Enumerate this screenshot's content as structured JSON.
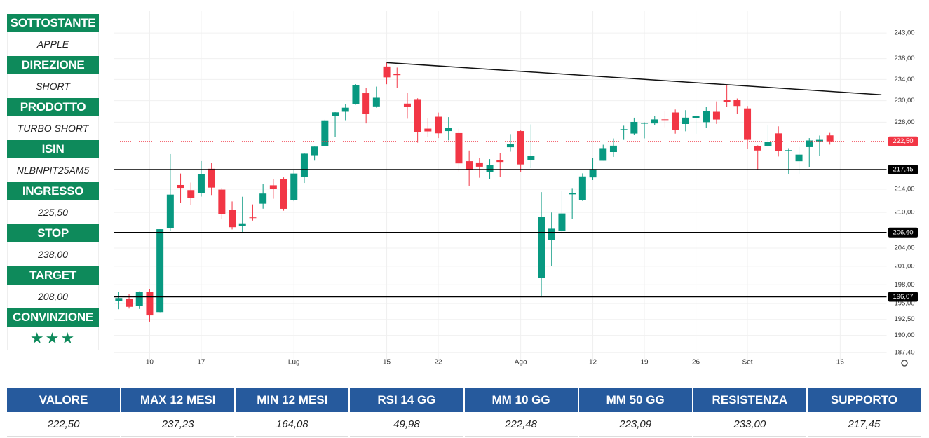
{
  "sidebar": [
    {
      "label": "SOTTOSTANTE",
      "value": "APPLE"
    },
    {
      "label": "DIREZIONE",
      "value": "SHORT"
    },
    {
      "label": "PRODOTTO",
      "value": "TURBO SHORT"
    },
    {
      "label": "ISIN",
      "value": "NLBNPIT25AM5"
    },
    {
      "label": "INGRESSO",
      "value": "225,50"
    },
    {
      "label": "STOP",
      "value": "238,00"
    },
    {
      "label": "TARGET",
      "value": "208,00"
    },
    {
      "label": "CONVINZIONE",
      "value": "★★★"
    }
  ],
  "chart_data": {
    "type": "candlestick",
    "x": [
      null,
      null,
      null,
      "10",
      null,
      null,
      null,
      null,
      "17",
      null,
      null,
      null,
      null,
      null,
      null,
      null,
      null,
      "Lug",
      null,
      null,
      null,
      null,
      null,
      null,
      null,
      null,
      "15",
      null,
      null,
      null,
      null,
      "22",
      null,
      null,
      null,
      null,
      null,
      null,
      null,
      "Ago",
      null,
      null,
      null,
      null,
      null,
      null,
      "12",
      null,
      null,
      null,
      null,
      "19",
      null,
      null,
      null,
      null,
      "26",
      null,
      null,
      null,
      null,
      "Set",
      null,
      null,
      null,
      null,
      null,
      null,
      null,
      null,
      "16",
      null,
      null,
      null,
      null
    ],
    "open": [
      195.4,
      195.7,
      194.65,
      196.9,
      193.65,
      207.37,
      214.74,
      213.85,
      213.37,
      217.59,
      213.93,
      210.39,
      207.72,
      209.15,
      211.5,
      214.69,
      215.77,
      212.09,
      216.15,
      220.0,
      221.65,
      227.09,
      227.93,
      229.3,
      231.39,
      228.92,
      236.48,
      235.0,
      229.45,
      230.28,
      224.82,
      227.01,
      224.37,
      224.0,
      218.93,
      218.7,
      216.96,
      219.19,
      221.44,
      224.37,
      219.15,
      199.09,
      205.3,
      206.9,
      213.11,
      212.1,
      216.07,
      219.01,
      220.57,
      224.6,
      223.92,
      225.72,
      225.77,
      226.52,
      227.79,
      225.66,
      226.76,
      226.0,
      227.92,
      230.1,
      230.19,
      228.55,
      221.66,
      221.63,
      223.95,
      220.82,
      218.92,
      221.46,
      222.5,
      223.58,
      null,
      null,
      null,
      null,
      null
    ],
    "high": [
      196.9,
      196.5,
      196.94,
      197.3,
      207.16,
      220.2,
      216.75,
      215.17,
      218.95,
      218.63,
      214.24,
      211.89,
      212.7,
      211.38,
      214.86,
      215.74,
      216.07,
      217.51,
      220.38,
      221.55,
      226.45,
      227.85,
      229.4,
      233.08,
      232.39,
      232.64,
      237.23,
      236.27,
      231.46,
      230.44,
      226.8,
      227.78,
      226.94,
      224.8,
      220.85,
      219.49,
      219.3,
      220.33,
      223.82,
      224.48,
      225.6,
      213.5,
      209.99,
      213.64,
      214.2,
      216.78,
      219.51,
      221.89,
      223.03,
      225.35,
      226.83,
      225.99,
      227.17,
      227.98,
      228.34,
      228.22,
      227.28,
      228.85,
      229.86,
      232.92,
      230.4,
      229.0,
      221.78,
      225.48,
      225.24,
      221.27,
      221.48,
      223.09,
      223.55,
      224.04,
      null,
      null,
      null,
      null,
      null
    ],
    "low": [
      194.1,
      194.2,
      194.14,
      192.15,
      193.63,
      206.9,
      211.6,
      211.3,
      212.72,
      213.0,
      208.85,
      207.11,
      206.59,
      208.61,
      210.64,
      212.35,
      210.3,
      211.92,
      215.1,
      219.03,
      221.65,
      223.25,
      226.37,
      229.25,
      225.77,
      228.68,
      233.09,
      232.33,
      226.64,
      222.27,
      223.28,
      223.09,
      222.68,
      217.13,
      214.62,
      216.01,
      215.75,
      216.12,
      220.63,
      217.02,
      217.71,
      196.0,
      201.07,
      206.39,
      208.83,
      211.97,
      215.6,
      219.01,
      219.7,
      222.76,
      223.65,
      223.04,
      225.45,
      225.05,
      223.9,
      224.33,
      223.89,
      224.89,
      225.68,
      228.88,
      227.48,
      221.17,
      217.48,
      221.52,
      219.77,
      216.71,
      216.73,
      217.89,
      219.82,
      221.91,
      null,
      null,
      null,
      null,
      null
    ],
    "close": [
      195.87,
      194.48,
      196.89,
      193.12,
      207.15,
      213.07,
      214.24,
      212.49,
      216.67,
      214.29,
      209.68,
      207.49,
      208.14,
      209.07,
      213.25,
      214.1,
      210.62,
      216.75,
      220.27,
      221.55,
      226.34,
      227.82,
      228.68,
      232.98,
      227.57,
      230.54,
      234.4,
      234.82,
      228.88,
      224.18,
      224.31,
      223.96,
      225.01,
      218.54,
      217.49,
      217.96,
      218.24,
      218.8,
      222.08,
      218.36,
      219.86,
      209.27,
      207.23,
      209.82,
      213.31,
      216.24,
      217.53,
      221.27,
      221.72,
      224.72,
      226.05,
      225.89,
      226.51,
      226.4,
      224.53,
      226.84,
      227.18,
      228.03,
      226.49,
      229.79,
      229.0,
      222.77,
      220.85,
      222.38,
      220.82,
      220.91,
      220.11,
      222.66,
      222.77,
      222.5,
      null,
      null,
      null,
      null,
      null
    ],
    "up_color": "#089981",
    "down_color": "#f23645",
    "log": true,
    "ylim": [
      186.1,
      247.5
    ],
    "grid": true,
    "yticks": [
      {
        "value": 243,
        "label": "243,00"
      },
      {
        "value": 238,
        "label": "238,00"
      },
      {
        "value": 234,
        "label": "234,00"
      },
      {
        "value": 230,
        "label": "230,00"
      },
      {
        "value": 226,
        "label": "226,00"
      },
      {
        "value": 214,
        "label": "214,00"
      },
      {
        "value": 210,
        "label": "210,00"
      },
      {
        "value": 204,
        "label": "204,00"
      },
      {
        "value": 201,
        "label": "201,00"
      },
      {
        "value": 198,
        "label": "198,00"
      },
      {
        "value": 195,
        "label": "195,00"
      },
      {
        "value": 192.5,
        "label": "192,50"
      },
      {
        "value": 190,
        "label": "190,00"
      },
      {
        "value": 187.4,
        "label": "187,40"
      }
    ],
    "hlines": [
      {
        "value": 217.45,
        "label": "217,45"
      },
      {
        "value": 206.6,
        "label": "206,60"
      },
      {
        "value": 196.07,
        "label": "196,07"
      }
    ],
    "last_price": {
      "value": 222.5,
      "label": "222,50",
      "color": "#f23645"
    },
    "trendline": {
      "start": [
        26,
        237.23
      ],
      "end": [
        74,
        231.1
      ]
    }
  },
  "table": {
    "headers": [
      "VALORE",
      "MAX 12 MESI",
      "MIN 12 MESI",
      "RSI 14 GG",
      "MM 10 GG",
      "MM 50 GG",
      "RESISTENZA",
      "SUPPORTO"
    ],
    "values": [
      "222,50",
      "237,23",
      "164,08",
      "49,98",
      "222,48",
      "223,09",
      "233,00",
      "217,45"
    ]
  }
}
